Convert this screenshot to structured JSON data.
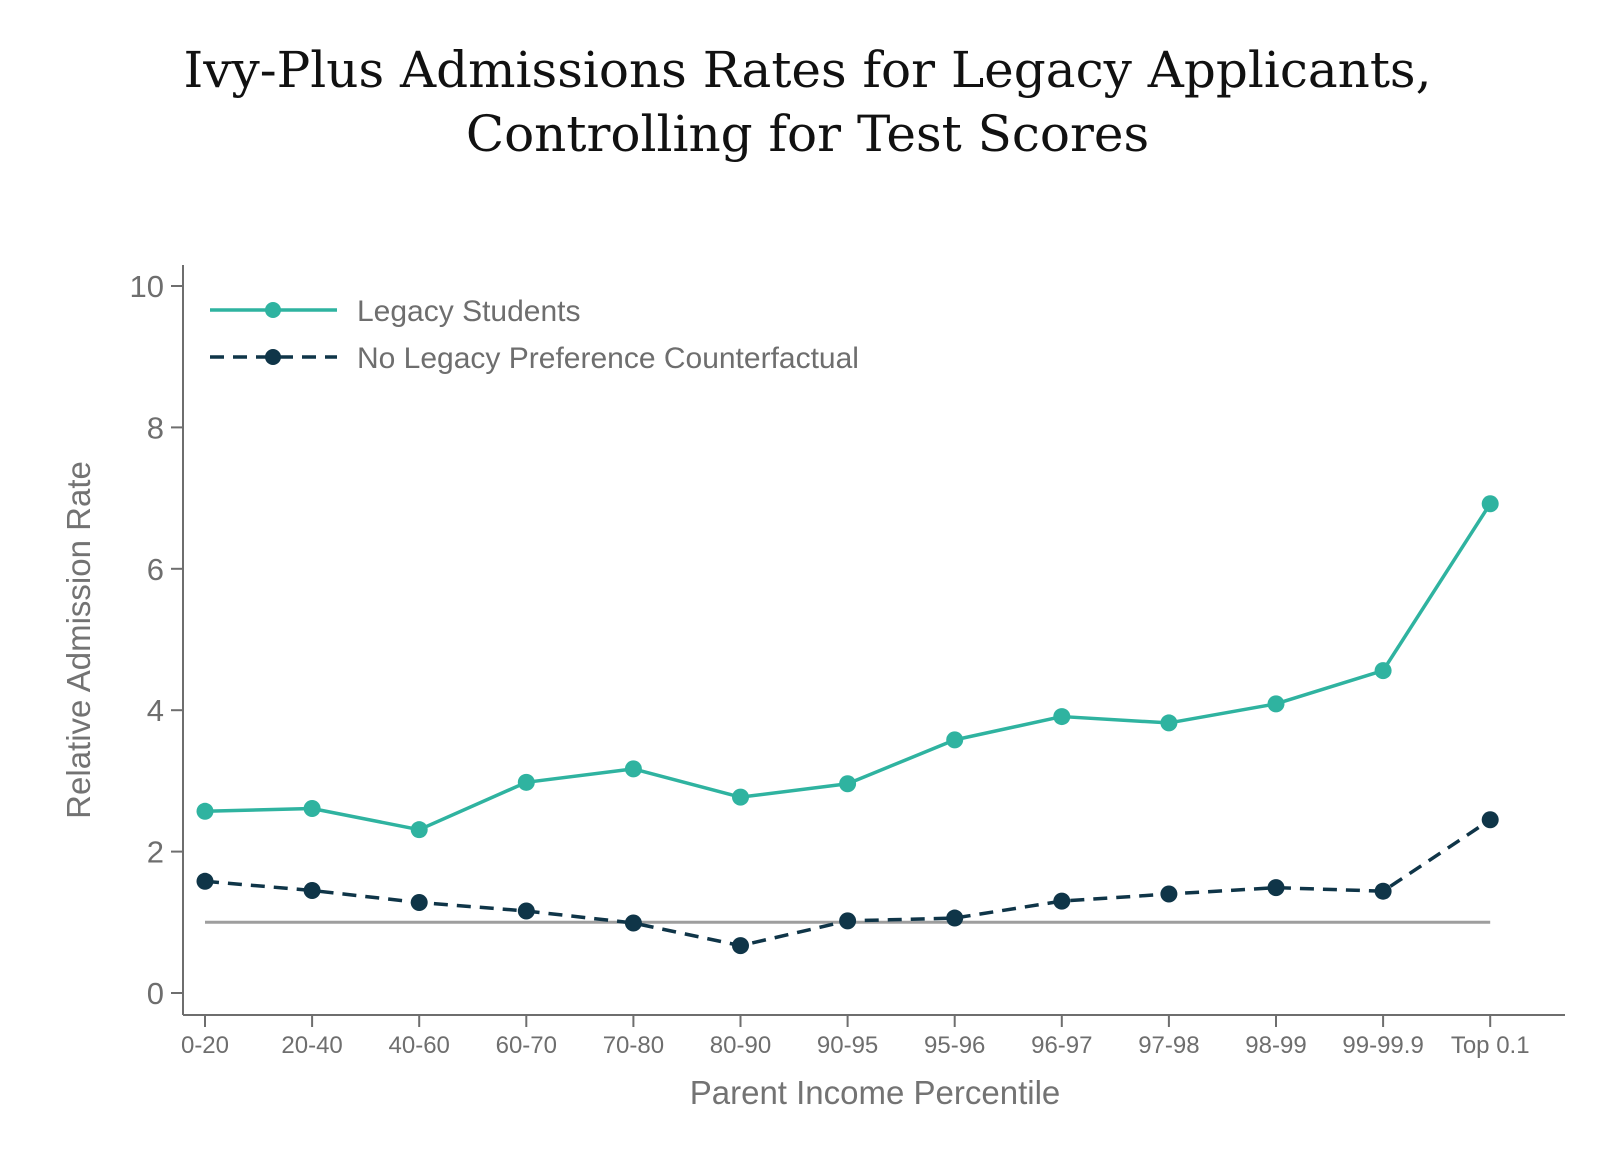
{
  "chart_data": {
    "type": "line",
    "title": [
      "Ivy-Plus Admissions Rates for Legacy Applicants,",
      "Controlling for Test Scores"
    ],
    "xlabel": "Parent Income Percentile",
    "ylabel": "Relative Admission Rate",
    "categories": [
      "0-20",
      "20-40",
      "40-60",
      "60-70",
      "70-80",
      "80-90",
      "90-95",
      "95-96",
      "96-97",
      "97-98",
      "98-99",
      "99-99.9",
      "Top 0.1"
    ],
    "yticks": [
      0,
      2,
      4,
      6,
      8,
      10
    ],
    "ylim": [
      0,
      10
    ],
    "reference_line": 1,
    "grid": false,
    "legend_position": "top-left",
    "series": [
      {
        "name": "Legacy Students",
        "color": "#2fb3a0",
        "style": "solid",
        "values": [
          2.57,
          2.61,
          2.31,
          2.98,
          3.17,
          2.77,
          2.96,
          3.58,
          3.91,
          3.82,
          4.09,
          4.56,
          6.92
        ]
      },
      {
        "name": "No Legacy Preference Counterfactual",
        "color": "#0f3548",
        "style": "dashed",
        "values": [
          1.58,
          1.45,
          1.28,
          1.16,
          0.99,
          0.67,
          1.02,
          1.06,
          1.3,
          1.4,
          1.49,
          1.44,
          2.45
        ]
      }
    ],
    "reference_line_color": "#9e9e9e"
  }
}
